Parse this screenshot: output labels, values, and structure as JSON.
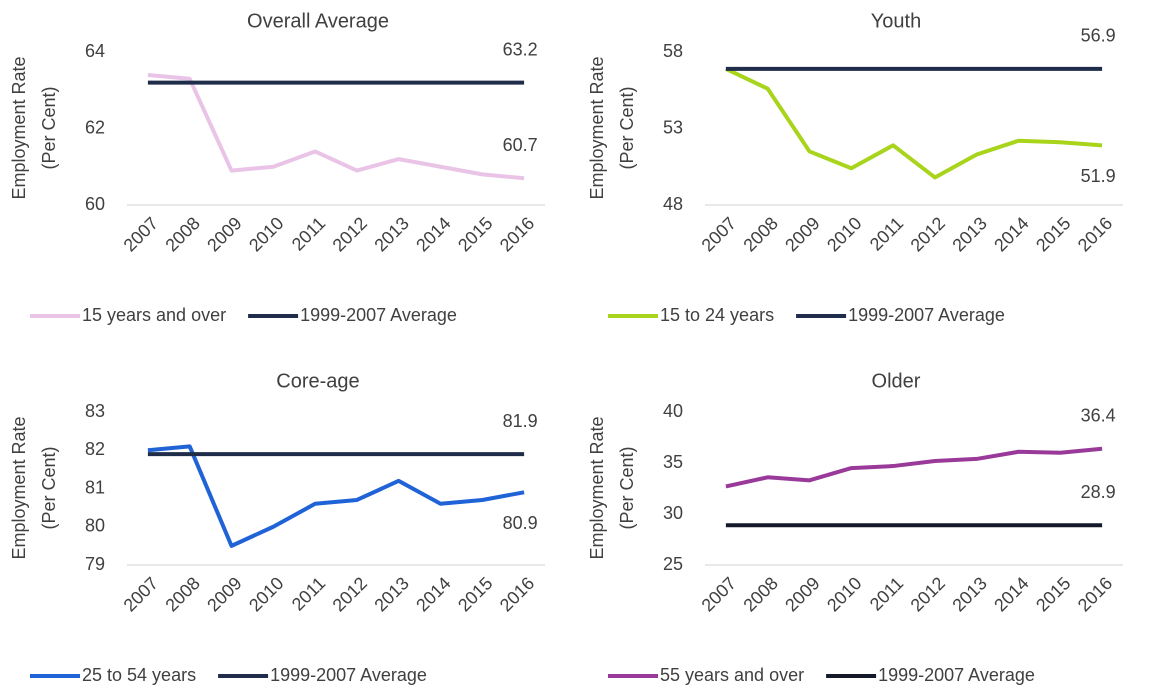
{
  "chart_data": [
    {
      "type": "line",
      "title": "Overall Average",
      "ylabel": [
        "Employment Rate",
        "(Per Cent)"
      ],
      "categories": [
        "2007",
        "2008",
        "2009",
        "2010",
        "2011",
        "2012",
        "2013",
        "2014",
        "2015",
        "2016"
      ],
      "series": [
        {
          "name": "15 years and over",
          "color": "#e9c4e7",
          "values": [
            63.4,
            63.3,
            60.9,
            61.0,
            61.4,
            60.9,
            61.2,
            61.0,
            60.8,
            60.7
          ],
          "label_last": "above"
        },
        {
          "name": "1999-2007 Average",
          "color": "#1f2d4a",
          "values": [
            63.2,
            63.2,
            63.2,
            63.2,
            63.2,
            63.2,
            63.2,
            63.2,
            63.2,
            63.2
          ],
          "label_last": "above"
        }
      ],
      "ylim": [
        60,
        64
      ],
      "yticks": [
        60,
        62,
        64
      ],
      "grid": false,
      "legend": "bottom"
    },
    {
      "type": "line",
      "title": "Youth",
      "ylabel": [
        "Employment Rate",
        "(Per Cent)"
      ],
      "categories": [
        "2007",
        "2008",
        "2009",
        "2010",
        "2011",
        "2012",
        "2013",
        "2014",
        "2015",
        "2016"
      ],
      "series": [
        {
          "name": "15 to 24 years",
          "color": "#a8d41c",
          "values": [
            56.9,
            55.6,
            51.5,
            50.4,
            51.9,
            49.8,
            51.3,
            52.2,
            52.1,
            51.9
          ],
          "label_last": "below"
        },
        {
          "name": "1999-2007 Average",
          "color": "#1f2d4a",
          "values": [
            56.9,
            56.9,
            56.9,
            56.9,
            56.9,
            56.9,
            56.9,
            56.9,
            56.9,
            56.9
          ],
          "label_last": "above"
        }
      ],
      "ylim": [
        48,
        58
      ],
      "yticks": [
        48,
        53,
        58
      ],
      "grid": false,
      "legend": "bottom"
    },
    {
      "type": "line",
      "title": "Core-age",
      "ylabel": [
        "Employment Rate",
        "(Per Cent)"
      ],
      "categories": [
        "2007",
        "2008",
        "2009",
        "2010",
        "2011",
        "2012",
        "2013",
        "2014",
        "2015",
        "2016"
      ],
      "series": [
        {
          "name": "25 to 54 years",
          "color": "#1f63d6",
          "values": [
            82.0,
            82.1,
            79.5,
            80.0,
            80.6,
            80.7,
            81.2,
            80.6,
            80.7,
            80.9
          ],
          "label_last": "below"
        },
        {
          "name": "1999-2007 Average",
          "color": "#1f2d4a",
          "values": [
            81.9,
            81.9,
            81.9,
            81.9,
            81.9,
            81.9,
            81.9,
            81.9,
            81.9,
            81.9
          ],
          "label_last": "above"
        }
      ],
      "ylim": [
        79,
        83
      ],
      "yticks": [
        79,
        80,
        81,
        82,
        83
      ],
      "grid": false,
      "legend": "bottom"
    },
    {
      "type": "line",
      "title": "Older",
      "ylabel": [
        "Employment Rate",
        "(Per Cent)"
      ],
      "categories": [
        "2007",
        "2008",
        "2009",
        "2010",
        "2011",
        "2012",
        "2013",
        "2014",
        "2015",
        "2016"
      ],
      "series": [
        {
          "name": "55 years and over",
          "color": "#993a9a",
          "values": [
            32.7,
            33.6,
            33.3,
            34.5,
            34.7,
            35.2,
            35.4,
            36.1,
            36.0,
            36.4
          ],
          "label_last": "above"
        },
        {
          "name": "1999-2007 Average",
          "color": "#141a2a",
          "values": [
            28.9,
            28.9,
            28.9,
            28.9,
            28.9,
            28.9,
            28.9,
            28.9,
            28.9,
            28.9
          ],
          "label_last": "above"
        }
      ],
      "ylim": [
        25,
        40
      ],
      "yticks": [
        25,
        30,
        35,
        40
      ],
      "grid": false,
      "legend": "bottom"
    }
  ]
}
